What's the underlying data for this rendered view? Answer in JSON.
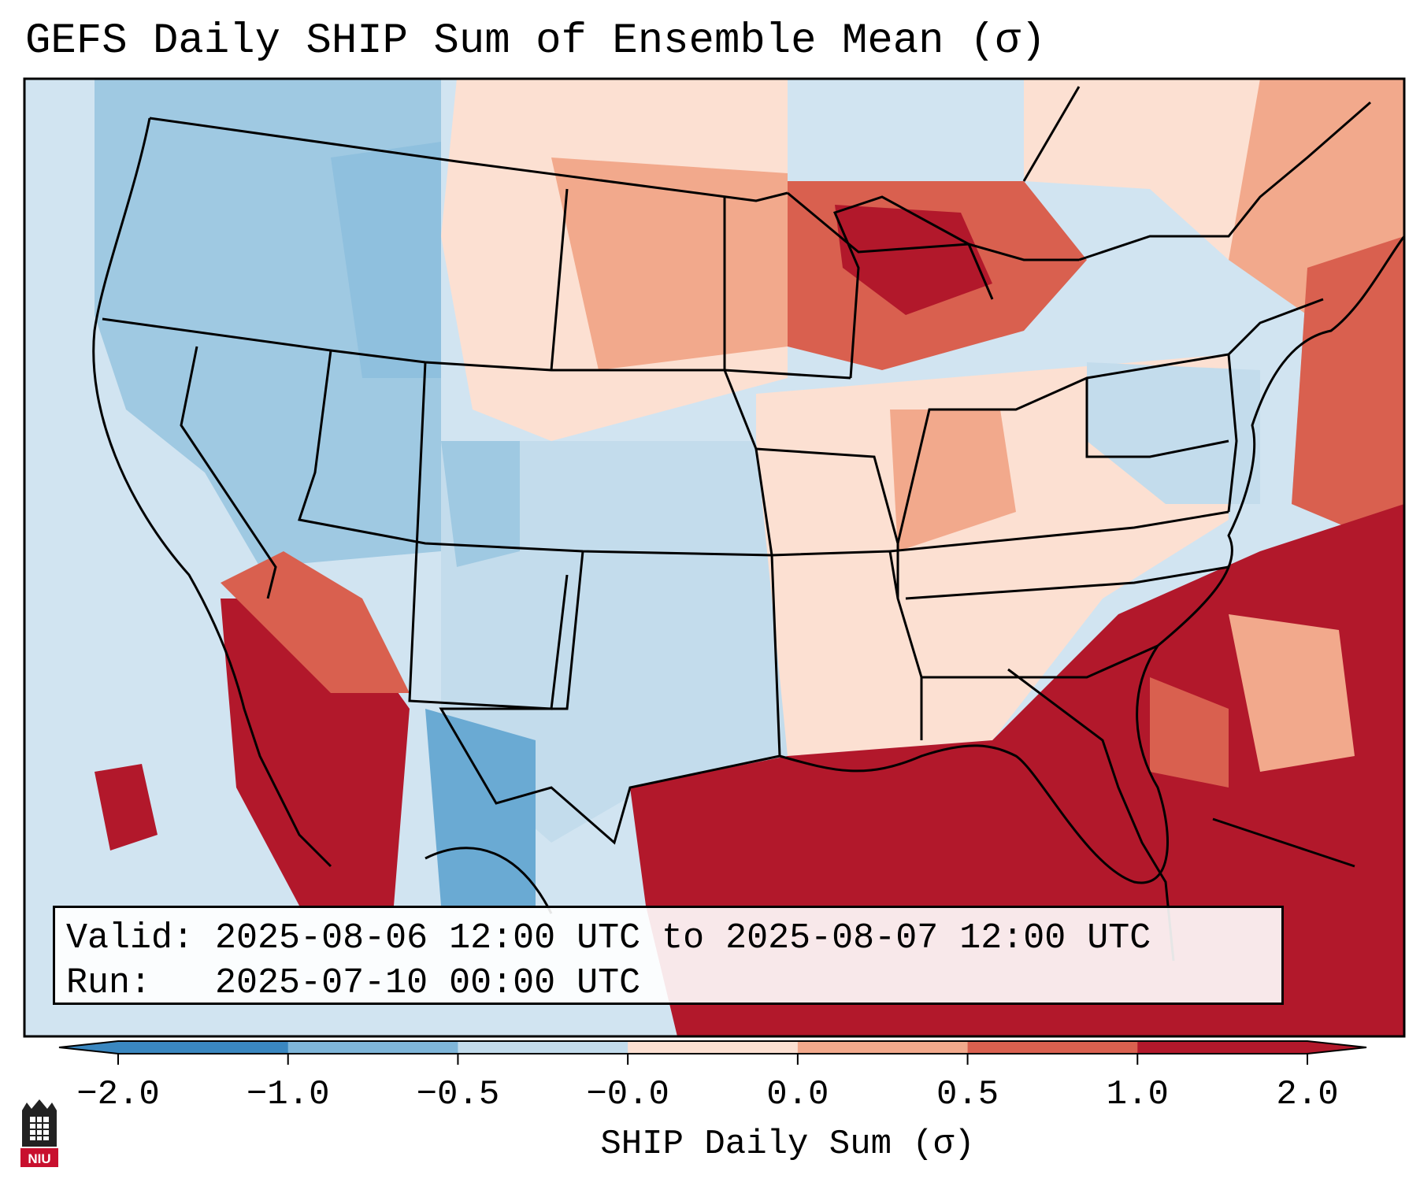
{
  "title": "GEFS Daily SHIP Sum of Ensemble Mean (σ)",
  "info": {
    "valid_label": "Valid:",
    "valid_value": "2025-08-06 12:00 UTC to 2025-08-07 12:00 UTC",
    "run_label": "Run:",
    "run_value": "2025-07-10 00:00 UTC"
  },
  "colorbar": {
    "label": "SHIP Daily Sum (σ)",
    "ticks": [
      "−2.0",
      "−1.0",
      "−0.5",
      "−0.0",
      "0.0",
      "0.5",
      "1.0",
      "2.0"
    ],
    "colors": [
      "#3a87c0",
      "#7fb6d9",
      "#c3dcec",
      "#eef4f8",
      "#fce0d2",
      "#f2a98c",
      "#d9604f",
      "#b2182b"
    ],
    "extend": "both"
  },
  "map": {
    "region": "Continental United States",
    "ocean_color": "#d1e4f1"
  },
  "logo": {
    "text": "NIU"
  }
}
